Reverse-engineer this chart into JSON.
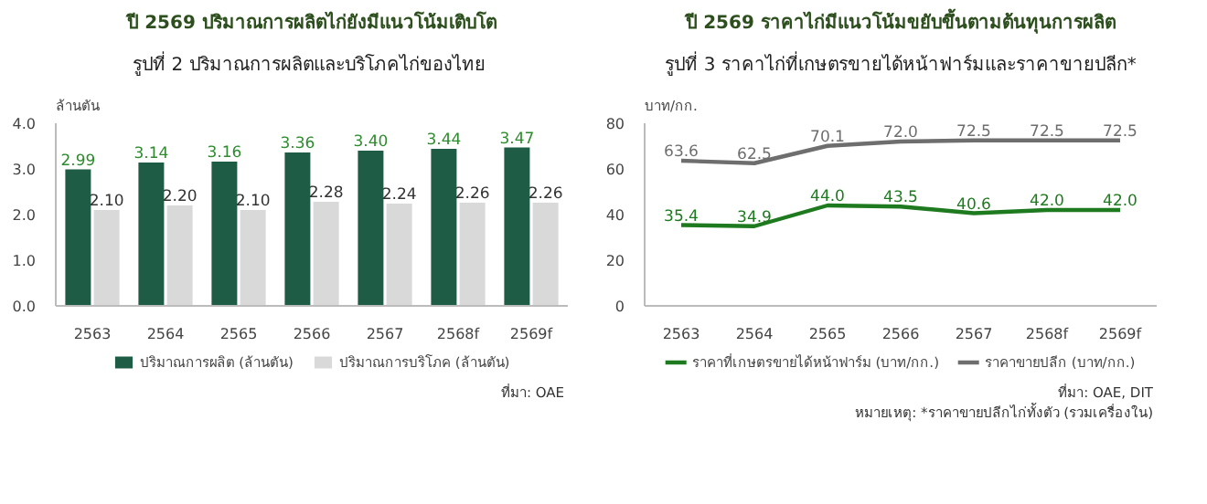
{
  "chart_data": [
    {
      "type": "bar",
      "title": "ปี 2569 ปริมาณการผลิตไก่ยังมีแนวโน้มเติบโต",
      "subtitle": "รูปที่ 2  ปริมาณการผลิตและบริโภคไก่ของไทย",
      "ylabel": "ล้านตัน",
      "categories": [
        "2563",
        "2564",
        "2565",
        "2566",
        "2567",
        "2568f",
        "2569f"
      ],
      "series": [
        {
          "name": "ปริมาณการผลิต (ล้านตัน)",
          "color": "#1f5c45",
          "values": [
            2.99,
            3.14,
            3.16,
            3.36,
            3.4,
            3.44,
            3.47
          ],
          "value_labels": [
            "2.99",
            "3.14",
            "3.16",
            "3.36",
            "3.40",
            "3.44",
            "3.47"
          ]
        },
        {
          "name": "ปริมาณการบริโภค (ล้านตัน)",
          "color": "#d9d9d9",
          "values": [
            2.1,
            2.2,
            2.1,
            2.28,
            2.24,
            2.26,
            2.26
          ],
          "value_labels": [
            "2.10",
            "2.20",
            "2.10",
            "2.28",
            "2.24",
            "2.26",
            "2.26"
          ]
        }
      ],
      "ylim": [
        0,
        4
      ],
      "yticks": [
        {
          "value": 0,
          "label": "0.0"
        },
        {
          "value": 1,
          "label": "1.0"
        },
        {
          "value": 2,
          "label": "2.0"
        },
        {
          "value": 3,
          "label": "3.0"
        },
        {
          "value": 4,
          "label": "4.0"
        }
      ],
      "grid": false,
      "legend": "bottom",
      "annotations": [
        "ที่มา: OAE"
      ]
    },
    {
      "type": "line",
      "title": "ปี 2569 ราคาไก่มีแนวโน้มขยับขึ้นตามต้นทุนการผลิต",
      "subtitle": "รูปที่ 3 ราคาไก่ที่เกษตรขายได้หน้าฟาร์มและราคาขายปลีก*",
      "ylabel": "บาท/กก.",
      "categories": [
        "2563",
        "2564",
        "2565",
        "2566",
        "2567",
        "2568f",
        "2569f"
      ],
      "series": [
        {
          "name": "ราคาที่เกษตรขายได้หน้าฟาร์ม (บาท/กก.)",
          "color": "#1e7a1e",
          "values": [
            35.4,
            34.9,
            44.0,
            43.5,
            40.6,
            42.0,
            42.0
          ],
          "value_labels": [
            "35.4",
            "34.9",
            "44.0",
            "43.5",
            "40.6",
            "42.0",
            "42.0"
          ]
        },
        {
          "name": "ราคาขายปลีก (บาท/กก.)",
          "color": "#6e6e6e",
          "values": [
            63.6,
            62.5,
            70.1,
            72.0,
            72.5,
            72.5,
            72.5
          ],
          "value_labels": [
            "63.6",
            "62.5",
            "70.1",
            "72.0",
            "72.5",
            "72.5",
            "72.5"
          ]
        }
      ],
      "ylim": [
        0,
        80
      ],
      "yticks": [
        0,
        20,
        40,
        60,
        80
      ],
      "grid": false,
      "legend": "bottom",
      "marker": "none",
      "line_style": "solid",
      "annotations": [
        "ที่มา: OAE, DIT",
        "หมายเหตุ: *ราคาขายปลีกไก่ทั้งตัว (รวมเครื่องใน)"
      ]
    }
  ]
}
